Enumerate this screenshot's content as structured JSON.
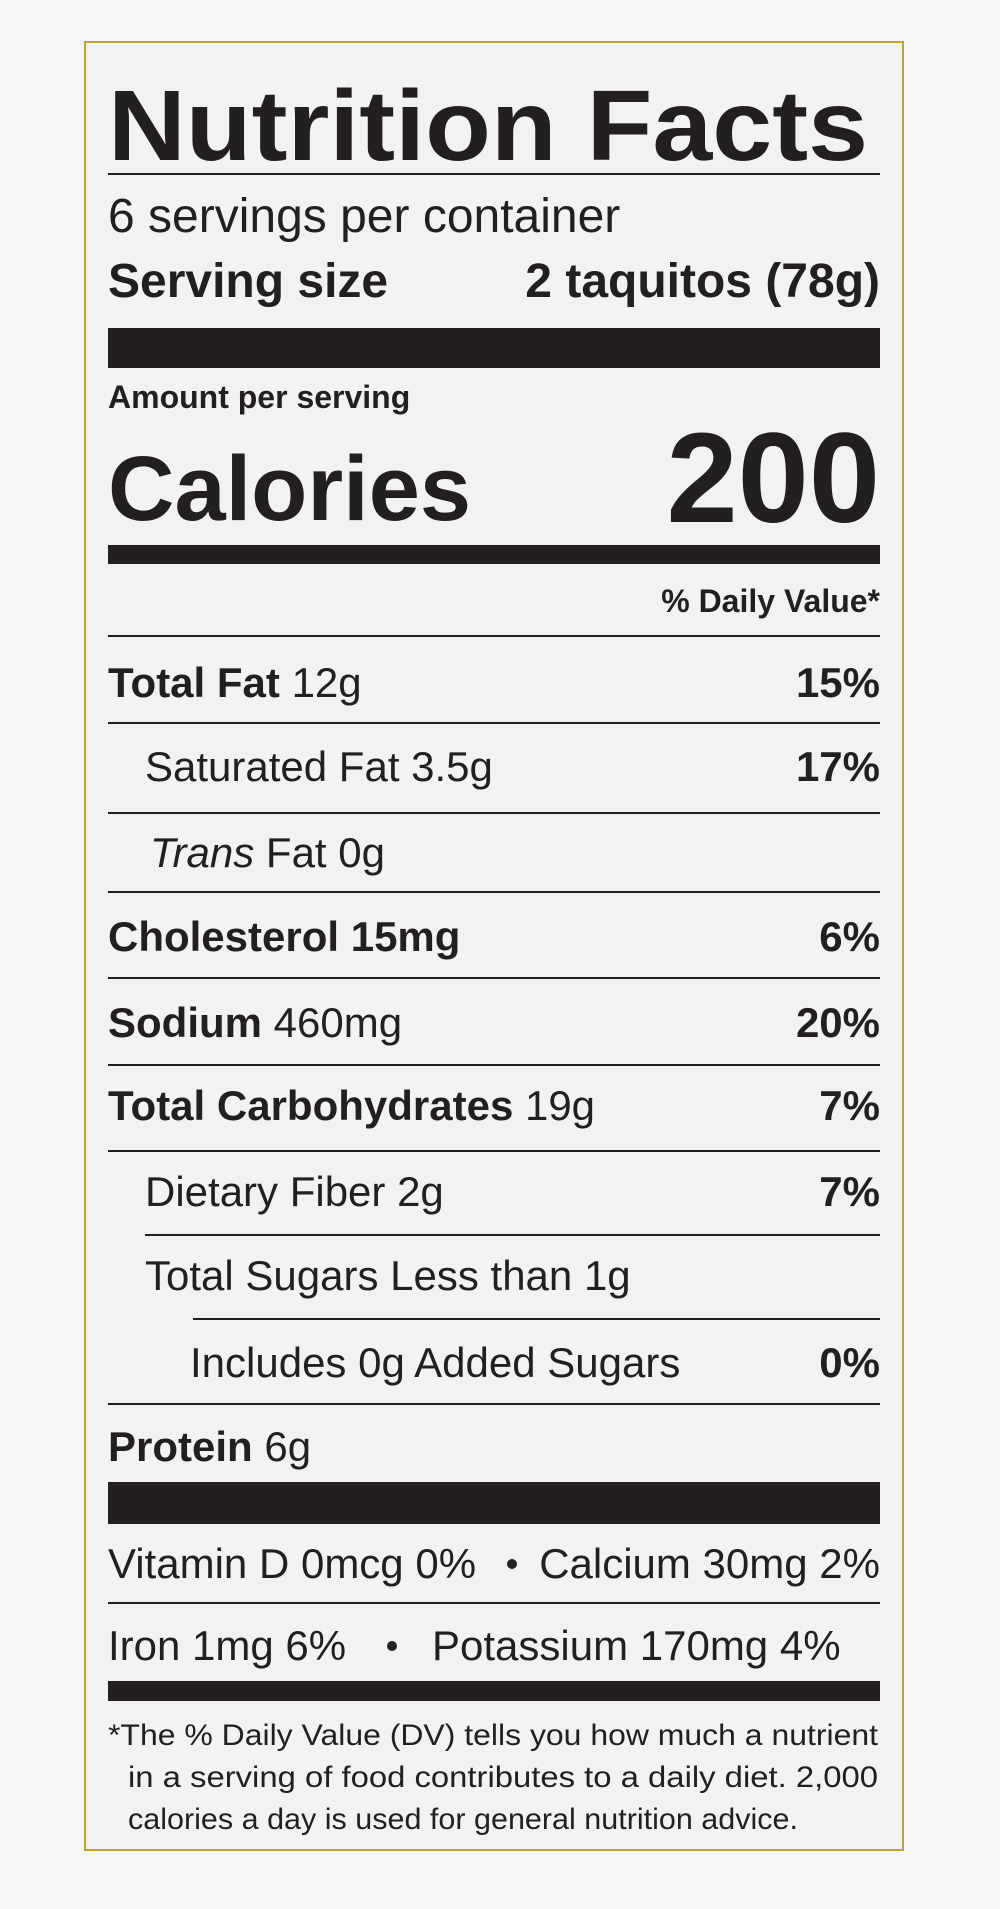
{
  "title": "Nutrition Facts",
  "servings": "6 servings per container",
  "serving_size": {
    "label": "Serving size",
    "value": "2 taquitos (78g)"
  },
  "amount_per_serving": "Amount per serving",
  "calories": {
    "label": "Calories",
    "value": 200
  },
  "daily_value_header": "% Daily Value*",
  "nutrients": [
    {
      "name": "Total Fat",
      "amount": "12g",
      "dv": "15%"
    },
    {
      "name": "Saturated Fat",
      "amount": "3.5g",
      "dv": "17%"
    },
    {
      "name_italic": "Trans",
      "name": "Fat",
      "amount": "0g"
    },
    {
      "name": "Cholesterol",
      "amount": "15mg",
      "dv": "6%"
    },
    {
      "name": "Sodium",
      "amount": "460mg",
      "dv": "20%"
    },
    {
      "name": "Total Carbohydrates",
      "amount": "19g",
      "dv": "7%"
    },
    {
      "name": "Dietary Fiber",
      "amount": "2g",
      "dv": "7%"
    },
    {
      "name": "Total Sugars",
      "amount": "Less than 1g"
    },
    {
      "name": "Includes 0g Added Sugars",
      "dv": "0%"
    },
    {
      "name": "Protein",
      "amount": "6g"
    }
  ],
  "vitamins": [
    [
      "Vitamin D 0mcg 0%",
      "Calcium 30mg 2%"
    ],
    [
      "Iron 1mg 6%",
      "Potassium 170mg 4%"
    ]
  ],
  "footnote": [
    "*The % Daily Value (DV) tells you how much a nutrient",
    "in a serving of food contributes to a daily diet. 2,000",
    "calories a day is used for general nutrition advice."
  ]
}
